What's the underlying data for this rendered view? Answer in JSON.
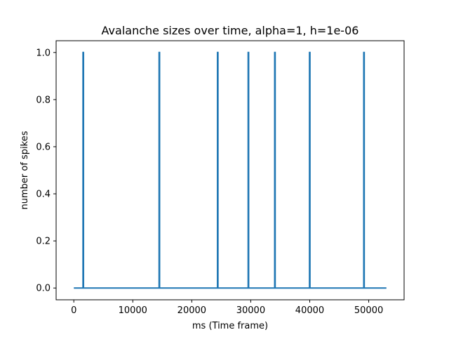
{
  "chart_data": {
    "type": "line",
    "title": "Avalanche sizes over time, alpha=1, h=1e-06",
    "xlabel": "ms (Time frame)",
    "ylabel": "number of spikes",
    "xlim": [
      -3000,
      56000
    ],
    "ylim": [
      -0.05,
      1.05
    ],
    "xticks": [
      0,
      10000,
      20000,
      30000,
      40000,
      50000
    ],
    "xtick_labels": [
      "0",
      "10000",
      "20000",
      "30000",
      "40000",
      "50000"
    ],
    "yticks": [
      0.0,
      0.2,
      0.4,
      0.6,
      0.8,
      1.0
    ],
    "ytick_labels": [
      "0.0",
      "0.2",
      "0.4",
      "0.6",
      "0.8",
      "1.0"
    ],
    "grid": false,
    "series": [
      {
        "name": "avalanche sizes",
        "color": "#1f77b4",
        "x_start": 0,
        "x_end": 53000,
        "baseline": 0,
        "spike_times": [
          1600,
          14500,
          24400,
          29600,
          34100,
          40000,
          49200
        ],
        "spike_values": [
          1,
          1,
          1,
          1,
          1,
          1,
          1
        ]
      }
    ]
  }
}
